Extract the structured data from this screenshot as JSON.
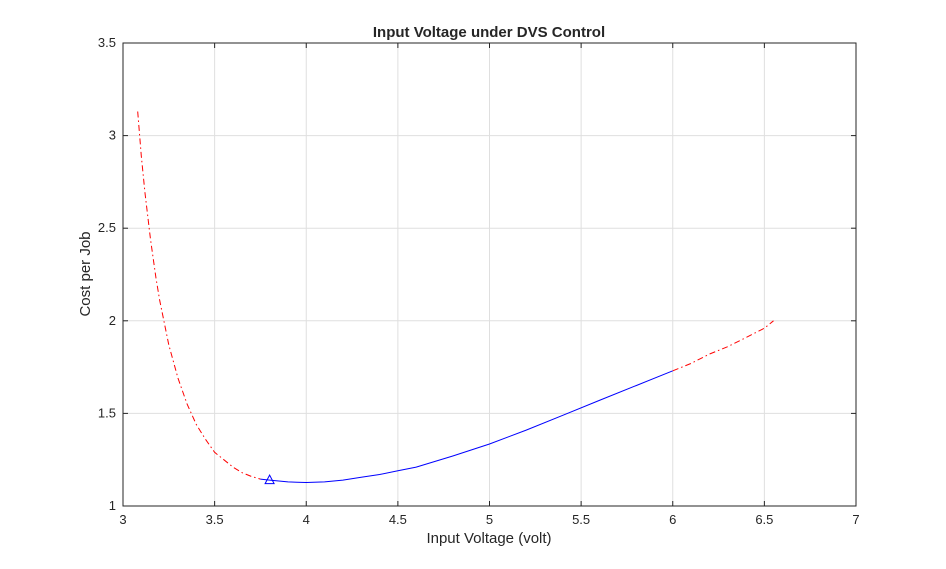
{
  "chart_data": {
    "type": "line",
    "title": "Input Voltage under DVS Control",
    "xlabel": "Input Voltage (volt)",
    "ylabel": "Cost per Job",
    "xlim": [
      3,
      7
    ],
    "ylim": [
      1,
      3.5
    ],
    "xticks": [
      3,
      3.5,
      4,
      4.5,
      5,
      5.5,
      6,
      6.5,
      7
    ],
    "xtick_labels": [
      "3",
      "3.5",
      "4",
      "4.5",
      "5",
      "5.5",
      "6",
      "6.5",
      "7"
    ],
    "yticks": [
      1,
      1.5,
      2,
      2.5,
      3,
      3.5
    ],
    "ytick_labels": [
      "1",
      "1.5",
      "2",
      "2.5",
      "3",
      "3.5"
    ],
    "grid": true,
    "box": true,
    "series": [
      {
        "style": "dash-dot",
        "color": "#ff0000",
        "x": [
          3.08,
          3.1,
          3.12,
          3.15,
          3.18,
          3.2,
          3.25,
          3.3,
          3.35,
          3.4,
          3.45,
          3.5,
          3.55,
          3.6,
          3.65,
          3.7,
          3.75
        ],
        "y": [
          3.13,
          2.89,
          2.69,
          2.44,
          2.23,
          2.11,
          1.87,
          1.69,
          1.55,
          1.44,
          1.36,
          1.29,
          1.25,
          1.21,
          1.18,
          1.16,
          1.145
        ]
      },
      {
        "style": "solid",
        "color": "#0000ff",
        "x": [
          3.75,
          3.8,
          3.85,
          3.9,
          3.95,
          4.0,
          4.1,
          4.2,
          4.3,
          4.4,
          4.5,
          4.6,
          4.8,
          5.0,
          5.2,
          5.4,
          5.6,
          5.8,
          6.0
        ],
        "y": [
          1.145,
          1.14,
          1.135,
          1.13,
          1.128,
          1.127,
          1.13,
          1.14,
          1.155,
          1.17,
          1.19,
          1.21,
          1.27,
          1.335,
          1.41,
          1.49,
          1.57,
          1.65,
          1.73
        ]
      },
      {
        "style": "dash-dot",
        "color": "#ff0000",
        "x": [
          6.0,
          6.1,
          6.2,
          6.3,
          6.4,
          6.5,
          6.55
        ],
        "y": [
          1.73,
          1.77,
          1.82,
          1.86,
          1.91,
          1.96,
          2.0
        ]
      }
    ],
    "markers": [
      {
        "shape": "triangle",
        "color": "#0000ff",
        "x": 3.8,
        "y": 1.14
      }
    ]
  }
}
